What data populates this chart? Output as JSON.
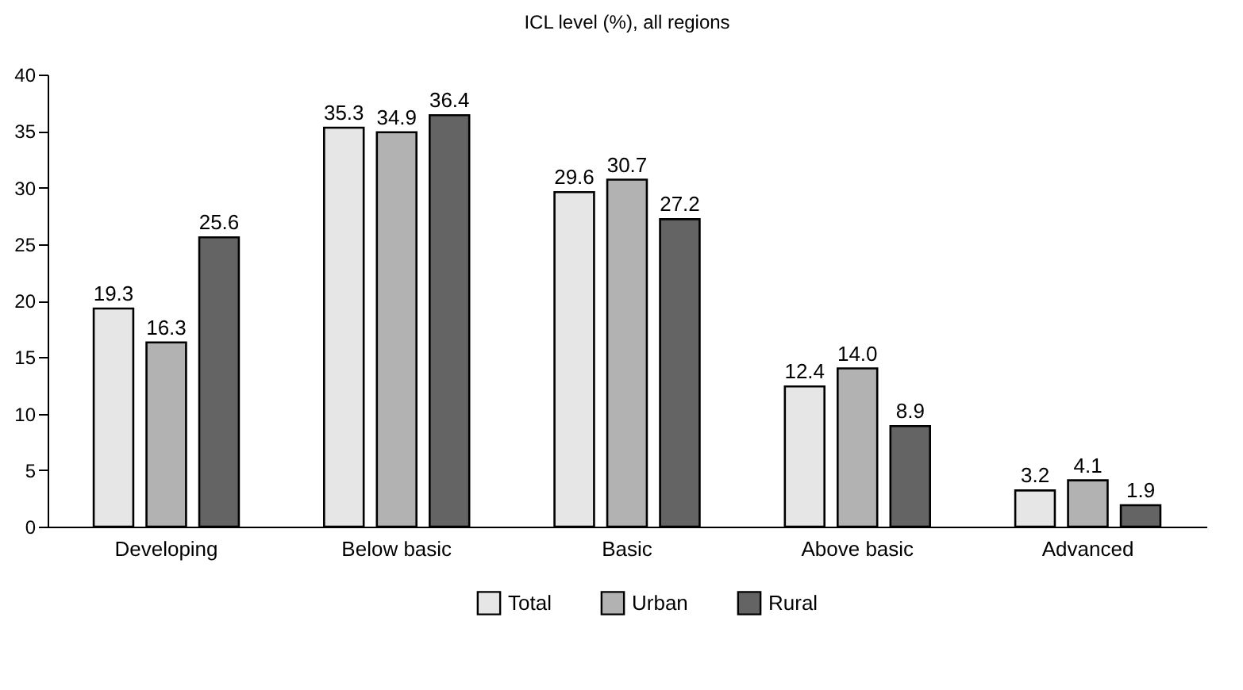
{
  "chart_data": {
    "type": "bar",
    "title": "ICL level (%), all regions",
    "categories": [
      "Developing",
      "Below basic",
      "Basic",
      "Above basic",
      "Advanced"
    ],
    "series": [
      {
        "name": "Total",
        "color": "#e6e6e6",
        "values": [
          19.3,
          35.3,
          29.6,
          12.4,
          3.2
        ],
        "value_labels": [
          "19.3",
          "35.3",
          "29.6",
          "12.4",
          "3.2"
        ]
      },
      {
        "name": "Urban",
        "color": "#b2b2b2",
        "values": [
          16.3,
          34.9,
          30.7,
          14.0,
          4.1
        ],
        "value_labels": [
          "16.3",
          "34.9",
          "30.7",
          "14.0",
          "4.1"
        ]
      },
      {
        "name": "Rural",
        "color": "#646464",
        "values": [
          25.6,
          36.4,
          27.2,
          8.9,
          1.9
        ],
        "value_labels": [
          "25.6",
          "36.4",
          "27.2",
          "8.9",
          "1.9"
        ]
      }
    ],
    "ylim": [
      0,
      40
    ],
    "yticks": [
      0,
      5,
      10,
      15,
      20,
      25,
      30,
      35,
      40
    ],
    "grid": false,
    "legend": "bottom"
  }
}
